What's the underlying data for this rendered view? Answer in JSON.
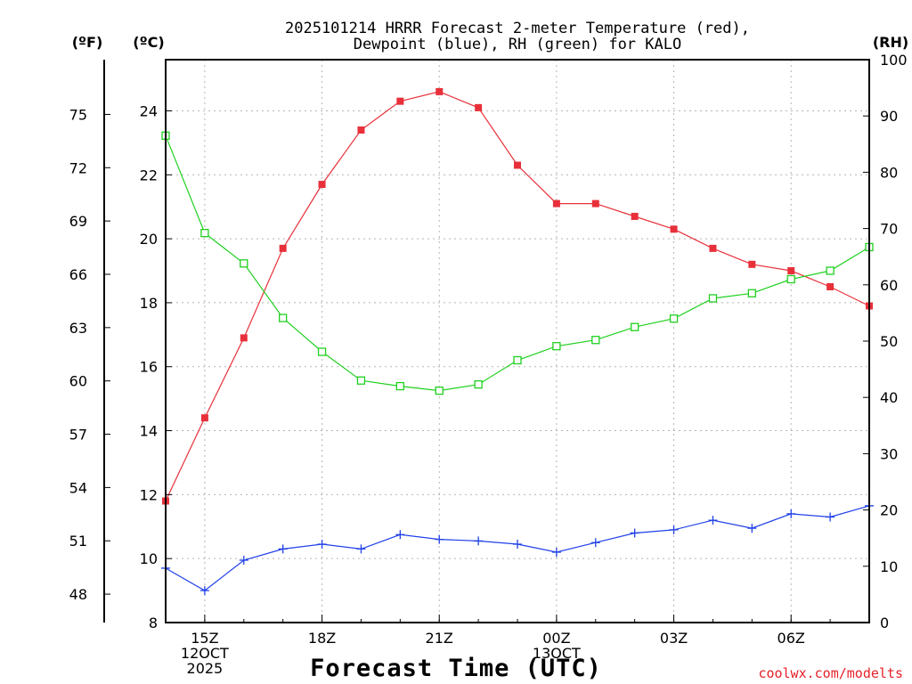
{
  "chart_data": {
    "type": "line",
    "title": [
      "2025101214 HRRR Forecast 2-meter Temperature (red),",
      "Dewpoint (blue), RH (green) for KALO"
    ],
    "xlabel": "Forecast Time (UTC)",
    "y_left_unit": "(ºC)",
    "y_far_left_unit": "(ºF)",
    "y_right_unit": "(RH)",
    "ylim_c": [
      8,
      25.6
    ],
    "ylim_rh": [
      0,
      100
    ],
    "x_hours": [
      14,
      15,
      16,
      17,
      18,
      19,
      20,
      21,
      22,
      23,
      24,
      25,
      26,
      27,
      28,
      29,
      30,
      31,
      32
    ],
    "x_range": [
      14,
      32
    ],
    "x_ticks": [
      {
        "hour": 15,
        "lines": [
          "15Z",
          "12OCT",
          "2025"
        ]
      },
      {
        "hour": 18,
        "lines": [
          "18Z"
        ]
      },
      {
        "hour": 21,
        "lines": [
          "21Z"
        ]
      },
      {
        "hour": 24,
        "lines": [
          "00Z",
          "13OCT"
        ]
      },
      {
        "hour": 27,
        "lines": [
          "03Z"
        ]
      },
      {
        "hour": 30,
        "lines": [
          "06Z"
        ]
      }
    ],
    "x_grid_hours": [
      15,
      18,
      21,
      24,
      27,
      30
    ],
    "c_ticks": [
      8,
      10,
      12,
      14,
      16,
      18,
      20,
      22,
      24
    ],
    "c_grid": [
      10,
      12,
      14,
      16,
      18,
      20,
      22,
      24
    ],
    "f_ticks": [
      48,
      51,
      54,
      57,
      60,
      63,
      66,
      69,
      72,
      75
    ],
    "rh_ticks": [
      0,
      10,
      20,
      30,
      40,
      50,
      60,
      70,
      80,
      90,
      100
    ],
    "series": [
      {
        "name": "Temperature",
        "unit": "C",
        "color": "#e8303a",
        "marker": "filled-square",
        "values": [
          11.8,
          14.4,
          16.9,
          19.7,
          21.7,
          23.4,
          24.3,
          24.6,
          24.1,
          22.3,
          21.1,
          21.1,
          20.7,
          20.3,
          19.7,
          19.2,
          19.0,
          18.5,
          17.9
        ]
      },
      {
        "name": "Dewpoint",
        "unit": "C",
        "color": "#2040e8",
        "marker": "plus",
        "values": [
          9.7,
          9.0,
          9.95,
          10.3,
          10.45,
          10.3,
          10.75,
          10.6,
          10.55,
          10.45,
          10.2,
          10.5,
          10.8,
          10.9,
          11.2,
          10.95,
          11.4,
          11.3,
          11.65
        ]
      },
      {
        "name": "RH",
        "unit": "%",
        "color": "#20d020",
        "marker": "open-square",
        "values": [
          86.5,
          69.2,
          63.8,
          54.1,
          48.1,
          43.0,
          42.0,
          41.2,
          42.3,
          46.6,
          49.1,
          50.2,
          52.5,
          54.0,
          57.6,
          58.5,
          61.0,
          62.5,
          66.7
        ]
      }
    ]
  },
  "credit": "coolwx.com/modelts"
}
